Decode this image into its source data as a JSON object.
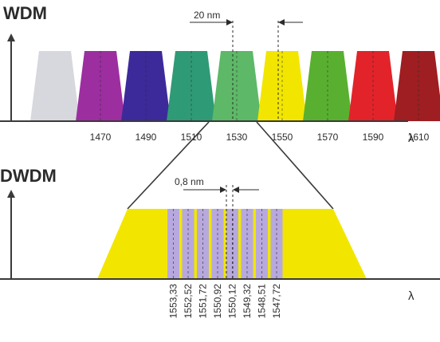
{
  "wdm": {
    "title": "WDM",
    "spacing_label": "20 nm",
    "axis_symbol": "λ",
    "channels": [
      {
        "label": "",
        "color": "#d6d8de"
      },
      {
        "label": "1470",
        "color": "#9c2ea0"
      },
      {
        "label": "1490",
        "color": "#3c2a9b"
      },
      {
        "label": "1510",
        "color": "#2f9a76"
      },
      {
        "label": "1530",
        "color": "#5db867"
      },
      {
        "label": "1550",
        "color": "#f2e600"
      },
      {
        "label": "1570",
        "color": "#59b030"
      },
      {
        "label": "1590",
        "color": "#e2232a"
      },
      {
        "label": "1610",
        "color": "#9e1e22"
      }
    ]
  },
  "dwdm": {
    "title": "DWDM",
    "spacing_label": "0,8 nm",
    "axis_symbol": "λ",
    "band_color": "#f2e600",
    "channel_color": "#b7a9dd",
    "channels": [
      "1553,33",
      "1552,52",
      "1551,72",
      "1550,92",
      "1550,12",
      "1549,32",
      "1548,51",
      "1547,72"
    ]
  }
}
